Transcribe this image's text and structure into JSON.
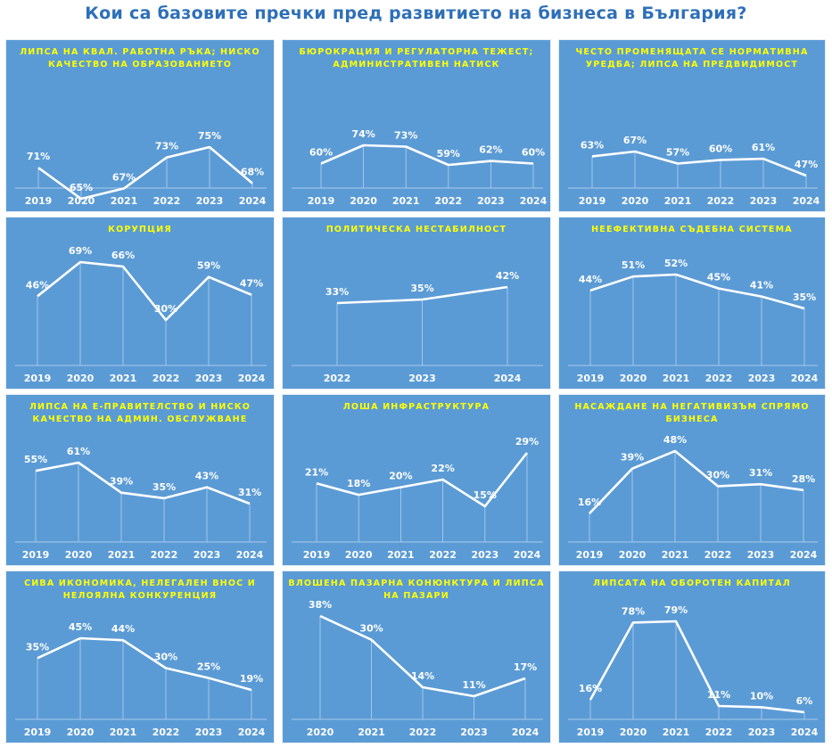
{
  "title": "Кои са базовите пречки пред развитието на бизнеса в България?",
  "colors": {
    "panel_bg": "#5b9bd5",
    "line": "#ffffff",
    "panel_title": "#ffff00",
    "title": "#2e6fb8"
  },
  "chart_data": [
    {
      "type": "line",
      "title": "ЛИПСА НА КВАЛ. РАБОТНА РЪКА; НИСКО КАЧЕСТВО НА ОБРАЗОВАНИЕТО",
      "x": [
        "2019",
        "2020",
        "2021",
        "2022",
        "2023",
        "2024"
      ],
      "values": [
        71,
        65,
        67,
        73,
        75,
        68
      ],
      "labels": [
        "71%",
        "65%",
        "67%",
        "73%",
        "75%",
        "68%"
      ],
      "ylim": [
        60,
        80
      ]
    },
    {
      "type": "line",
      "title": "БЮРОКРАЦИЯ И РЕГУЛАТОРНА ТЕЖЕСТ; АДМИНИСТРАТИВЕН НАТИСК",
      "x": [
        "2019",
        "2020",
        "2021",
        "2022",
        "2023",
        "2024"
      ],
      "values": [
        60,
        74,
        73,
        59,
        62,
        60
      ],
      "labels": [
        "60%",
        "74%",
        "73%",
        "59%",
        "62%",
        "60%"
      ],
      "ylim": [
        0,
        100
      ]
    },
    {
      "type": "line",
      "title": "ЧЕСТО ПРОМЕНЯЩАТА СЕ НОРМАТИВНА УРЕДБА; ЛИПСА НА ПРЕДВИДИМОСТ",
      "x": [
        "2019",
        "2020",
        "2021",
        "2022",
        "2023",
        "2024"
      ],
      "values": [
        63,
        67,
        57,
        60,
        61,
        47
      ],
      "labels": [
        "63%",
        "67%",
        "57%",
        "60%",
        "61%",
        "47%"
      ],
      "ylim": [
        0,
        100
      ]
    },
    {
      "type": "line",
      "title": "КОРУПЦИЯ",
      "x": [
        "2019",
        "2020",
        "2021",
        "2022",
        "2023",
        "2024"
      ],
      "values": [
        46,
        69,
        66,
        30,
        59,
        47
      ],
      "labels": [
        "46%",
        "69%",
        "66%",
        "30%",
        "59%",
        "47%"
      ],
      "ylim": [
        0,
        80
      ]
    },
    {
      "type": "line",
      "title": "ПОЛИТИЧЕСКА НЕСТАБИЛНОСТ",
      "x": [
        "2022",
        "2023",
        "2024"
      ],
      "values": [
        33,
        35,
        42
      ],
      "labels": [
        "33%",
        "35%",
        "42%"
      ],
      "ylim": [
        0,
        60
      ]
    },
    {
      "type": "line",
      "title": "НЕЕФЕКТИВНА СЪДЕБНА СИСТЕМА",
      "x": [
        "2019",
        "2020",
        "2021",
        "2022",
        "2023",
        "2024"
      ],
      "values": [
        44,
        51,
        52,
        45,
        41,
        35
      ],
      "labels": [
        "44%",
        "51%",
        "52%",
        "45%",
        "41%",
        "35%"
      ],
      "ylim": [
        0,
        70
      ]
    },
    {
      "type": "line",
      "title": "ЛИПСА НА Е-ПРАВИТЕЛСТВО И НИСКО КАЧЕСТВО НА АДМИН. ОБСЛУЖВАНЕ",
      "x": [
        "2019",
        "2020",
        "2021",
        "2022",
        "2023",
        "2024"
      ],
      "values": [
        55,
        61,
        39,
        35,
        43,
        31
      ],
      "labels": [
        "55%",
        "61%",
        "39%",
        "35%",
        "43%",
        "31%"
      ],
      "ylim": [
        0,
        80
      ]
    },
    {
      "type": "line",
      "title": "ЛОША ИНФРАСТРУКТУРА",
      "x": [
        "2019",
        "2020",
        "2021",
        "2022",
        "2023",
        "2024"
      ],
      "values": [
        21,
        18,
        20,
        22,
        15,
        29
      ],
      "labels": [
        "21%",
        "18%",
        "20%",
        "22%",
        "15%",
        "29%"
      ],
      "ylim": [
        0,
        40
      ]
    },
    {
      "type": "line",
      "title": "НАСАЖДАНЕ НА НЕГАТИВИЗЪМ СПРЯМО БИЗНЕСА",
      "x": [
        "2019",
        "2020",
        "2021",
        "2022",
        "2023",
        "2024"
      ],
      "values": [
        16,
        39,
        48,
        30,
        31,
        28
      ],
      "labels": [
        "16%",
        "39%",
        "48%",
        "30%",
        "31%",
        "28%"
      ],
      "ylim": [
        0,
        60
      ]
    },
    {
      "type": "line",
      "title": "СИВА ИКОНОМИКА, НЕЛЕГАЛЕН ВНОС И НЕЛОЯЛНА КОНКУРЕНЦИЯ",
      "x": [
        "2019",
        "2020",
        "2021",
        "2022",
        "2023",
        "2024"
      ],
      "values": [
        35,
        45,
        44,
        30,
        25,
        19
      ],
      "labels": [
        "35%",
        "45%",
        "44%",
        "30%",
        "25%",
        "19%"
      ],
      "ylim": [
        0,
        60
      ]
    },
    {
      "type": "line",
      "title": "ВЛОШЕНА ПАЗАРНА КОНЮНКТУРА И ЛИПСА НА ПАЗАРИ",
      "x": [
        "2020",
        "2021",
        "2022",
        "2023",
        "2024"
      ],
      "values": [
        38,
        30,
        14,
        11,
        17
      ],
      "labels": [
        "38%",
        "30%",
        "14%",
        "11%",
        "17%"
      ],
      "ylim": [
        0,
        45
      ]
    },
    {
      "type": "line",
      "title": "ЛИПСАТА НА ОБОРОТЕН КАПИТАЛ",
      "x": [
        "2019",
        "2020",
        "2021",
        "2022",
        "2023",
        "2024"
      ],
      "values": [
        16,
        78,
        79,
        11,
        10,
        6
      ],
      "labels": [
        "16%",
        "78%",
        "79%",
        "11%",
        "10%",
        "6%"
      ],
      "ylim": [
        0,
        95
      ]
    }
  ]
}
